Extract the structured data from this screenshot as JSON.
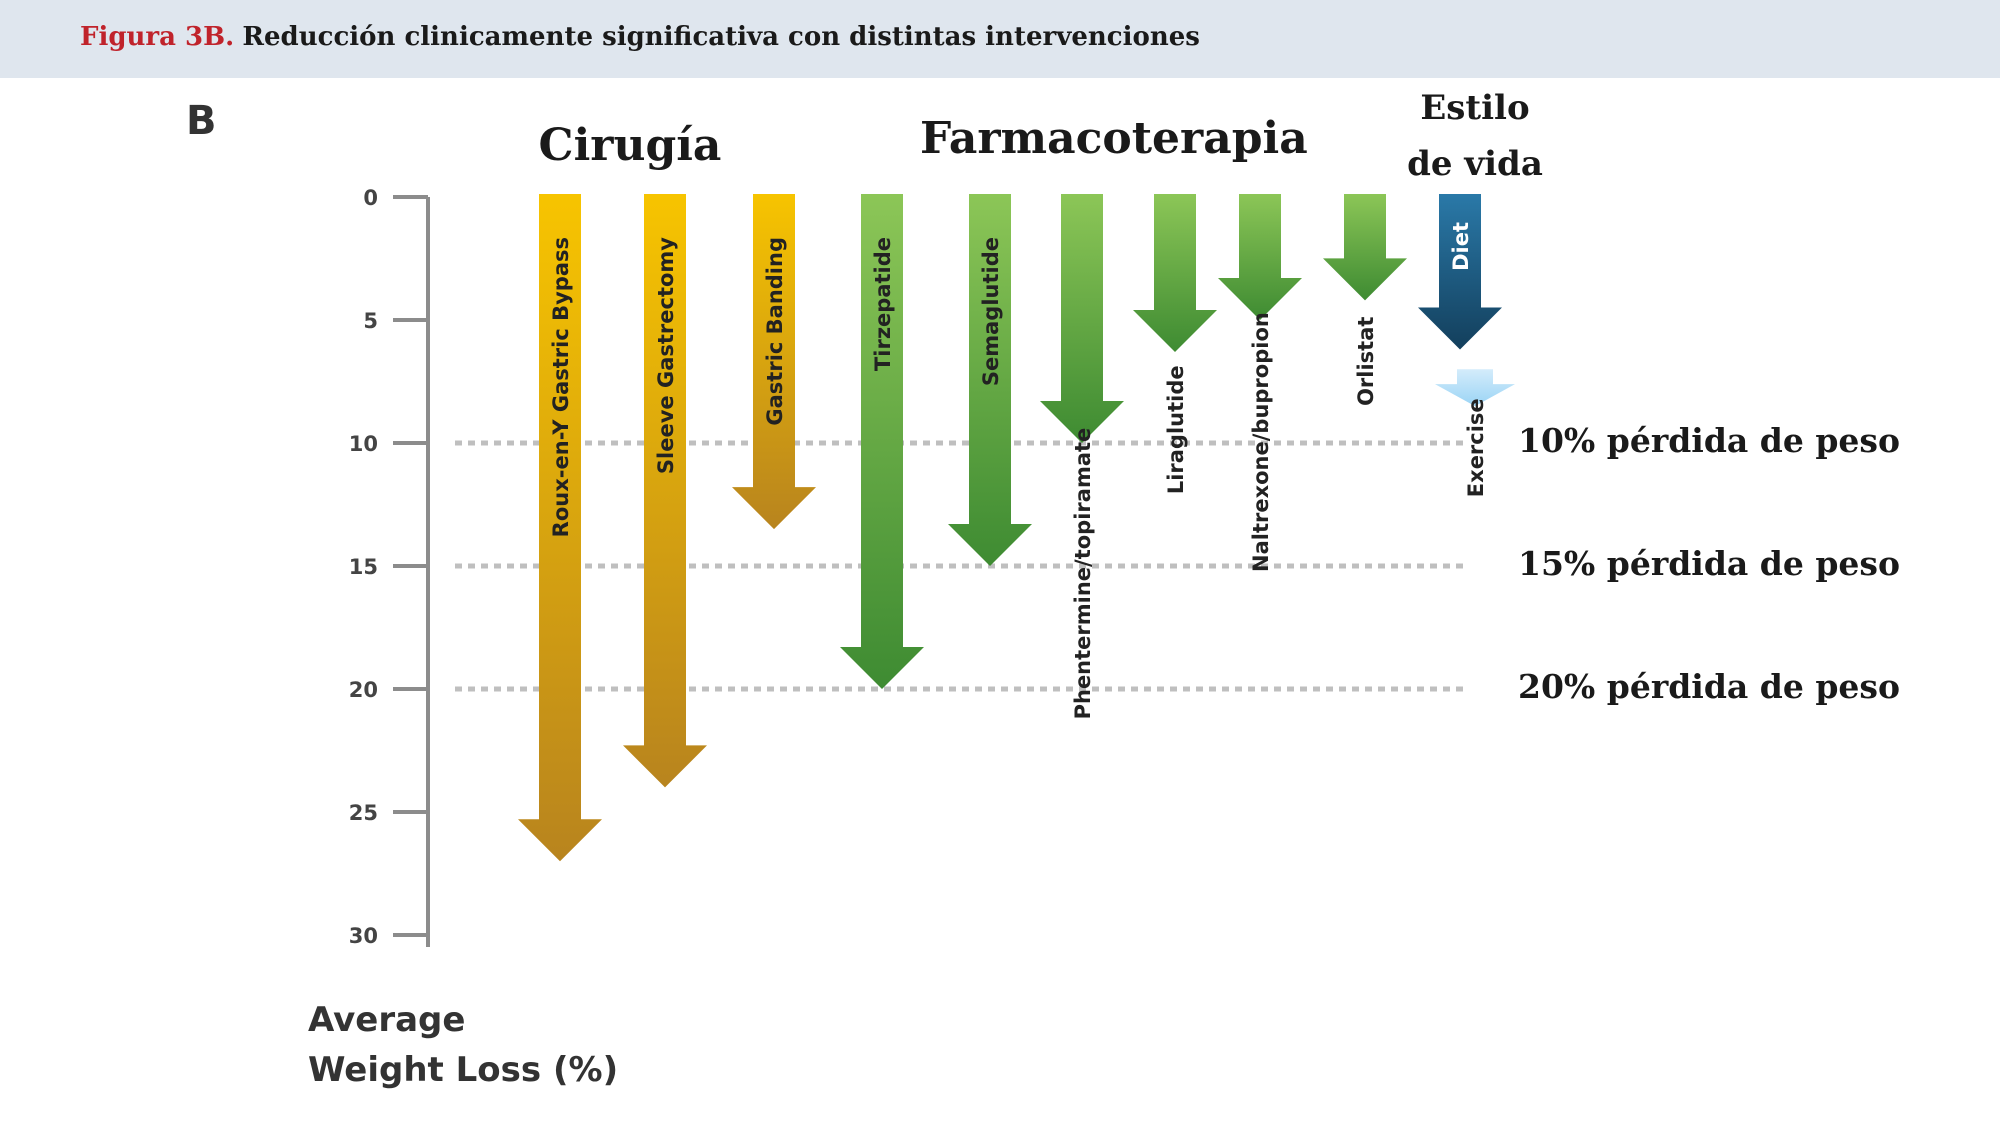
{
  "header": {
    "figure_label": "Figura 3B.",
    "title": "Reducción clinicamente significativa con distintas intervenciones"
  },
  "panel_letter": "B",
  "groups": {
    "surgery": "Cirugía",
    "pharmacotherapy": "Farmacoterapia",
    "lifestyle_line1": "Estilo",
    "lifestyle_line2": "de vida"
  },
  "reference_lines": [
    {
      "value": 10,
      "label": "10% pérdida de peso"
    },
    {
      "value": 15,
      "label": "15% pérdida de peso"
    },
    {
      "value": 20,
      "label": "20% pérdida de peso"
    }
  ],
  "y_axis_label_line1": "Average",
  "y_axis_label_line2": "Weight Loss (%)",
  "colors": {
    "surgery_top": "#f7c400",
    "surgery_bottom": "#b8841e",
    "pharma_top": "#8cc657",
    "pharma_bottom": "#3e8b32",
    "diet_top": "#2a79a8",
    "diet_bottom": "#133f5c",
    "exercise_top": "#d4ecfb",
    "exercise_bottom": "#9ad4f5",
    "reference_line": "#bfbfbf",
    "axis": "#8c8c8c"
  },
  "chart_data": {
    "type": "bar",
    "orientation": "downward-arrows",
    "ylabel": "Average Weight Loss (%)",
    "ylim": [
      0,
      30
    ],
    "yticks": [
      0,
      5,
      10,
      15,
      20,
      25,
      30
    ],
    "series": [
      {
        "name": "Roux-en-Y Gastric Bypass",
        "group": "surgery",
        "value": 27
      },
      {
        "name": "Sleeve Gastrectomy",
        "group": "surgery",
        "value": 24
      },
      {
        "name": "Gastric Banding",
        "group": "surgery",
        "value": 13.5
      },
      {
        "name": "Tirzepatide",
        "group": "pharmacotherapy",
        "value": 20
      },
      {
        "name": "Semaglutide",
        "group": "pharmacotherapy",
        "value": 15
      },
      {
        "name": "Phentermine/topiramate",
        "group": "pharmacotherapy",
        "value": 10
      },
      {
        "name": "Liraglutide",
        "group": "pharmacotherapy",
        "value": 6.3
      },
      {
        "name": "Naltrexone/bupropion",
        "group": "pharmacotherapy",
        "value": 5
      },
      {
        "name": "Orlistat",
        "group": "pharmacotherapy",
        "value": 4.2
      },
      {
        "name": "Diet",
        "group": "lifestyle",
        "value": 6.2
      },
      {
        "name": "Exercise",
        "group": "lifestyle",
        "value_start": 7,
        "value": 8.5
      }
    ]
  }
}
